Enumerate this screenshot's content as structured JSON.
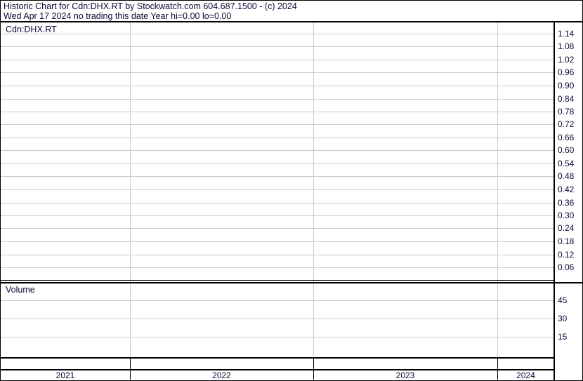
{
  "header": {
    "line1": "Historic Chart for Cdn:DHX.RT by Stockwatch.com 604.687.1500 - (c) 2024",
    "line2": "Wed Apr 17 2024   no trading this date  Year hi=0.00  lo=0.00"
  },
  "chart_data": [
    {
      "type": "line",
      "title": "Cdn:DHX.RT",
      "y_ticks": [
        "1.14",
        "1.08",
        "1.02",
        "0.96",
        "0.90",
        "0.84",
        "0.78",
        "0.72",
        "0.66",
        "0.60",
        "0.54",
        "0.48",
        "0.42",
        "0.36",
        "0.30",
        "0.24",
        "0.18",
        "0.12",
        "0.06"
      ],
      "ylim": [
        0,
        1.17
      ],
      "x_categories": [
        "2021",
        "2022",
        "2023",
        "2024"
      ],
      "series": [],
      "grid": true,
      "axis_position": "right"
    },
    {
      "type": "bar",
      "title": "Volume",
      "y_ticks": [
        "45",
        "30",
        "15"
      ],
      "ylim": [
        0,
        60
      ],
      "x_categories": [
        "2021",
        "2022",
        "2023",
        "2024"
      ],
      "series": [],
      "grid": true,
      "axis_position": "right"
    }
  ],
  "colors": {
    "text": "#0a0a3a",
    "grid": "#cccccc",
    "border": "#000000"
  }
}
